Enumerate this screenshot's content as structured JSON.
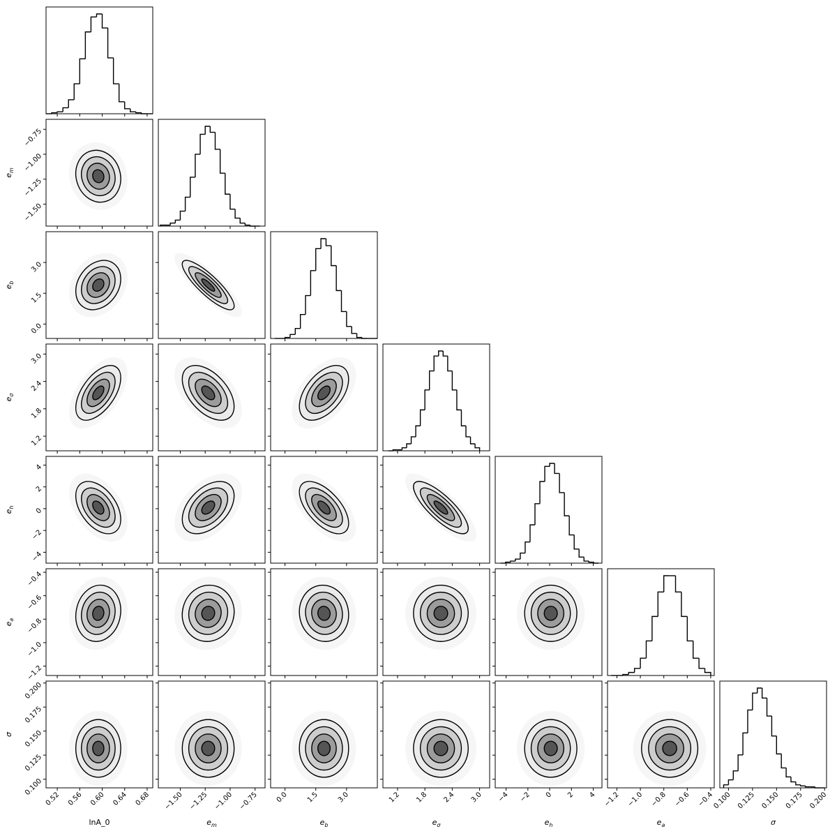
{
  "chart_data": {
    "type": "corner",
    "parameters": [
      {
        "label": "lnA_0",
        "xlim": [
          0.5,
          0.69
        ],
        "xticks": [
          0.52,
          0.56,
          {
            "value": 0.6,
            "label": "0.60"
          },
          0.64,
          0.68
        ],
        "bins": [
          0.5,
          0.51,
          0.52,
          0.53,
          0.54,
          0.55,
          0.56,
          0.57,
          0.58,
          0.59,
          0.6,
          0.61,
          0.62,
          0.63,
          0.64,
          0.65,
          0.66,
          0.67,
          0.68,
          0.69
        ],
        "counts": [
          0,
          1,
          2,
          6,
          14,
          30,
          55,
          82,
          97,
          100,
          86,
          56,
          30,
          12,
          5,
          2,
          1,
          0,
          0
        ],
        "mean": 0.593,
        "std": 0.02
      },
      {
        "label": "e",
        "label_sub": "m",
        "xlim": [
          -1.72,
          -0.65
        ],
        "xticks": [
          {
            "value": -1.5,
            "label": "−1.50"
          },
          {
            "value": -1.25,
            "label": "−1.25"
          },
          {
            "value": -1,
            "label": "−1.00"
          },
          {
            "value": -0.75,
            "label": "−0.75"
          }
        ],
        "bins": [
          -1.7,
          -1.65,
          -1.6,
          -1.55,
          -1.5,
          -1.45,
          -1.4,
          -1.35,
          -1.3,
          -1.25,
          -1.2,
          -1.15,
          -1.1,
          -1.05,
          -1,
          -0.95,
          -0.9,
          -0.85,
          -0.8,
          -0.75,
          -0.7
        ],
        "counts": [
          1,
          1,
          3,
          6,
          15,
          29,
          49,
          72,
          92,
          100,
          94,
          77,
          53,
          32,
          17,
          8,
          3,
          1,
          0,
          0
        ],
        "mean": -1.22,
        "std": 0.13
      },
      {
        "label": "e",
        "label_sub": "b",
        "xlim": [
          -0.7,
          4.5
        ],
        "xticks": [
          {
            "value": 0,
            "label": "0.0"
          },
          1.5,
          {
            "value": 3,
            "label": "3.0"
          }
        ],
        "bins": [
          -0.5,
          -0.25,
          0,
          0.25,
          0.5,
          0.75,
          1,
          1.25,
          1.5,
          1.75,
          2,
          2.25,
          2.5,
          2.75,
          3,
          3.25,
          3.5,
          3.75,
          4,
          4.25,
          4.5
        ],
        "counts": [
          0,
          0,
          1,
          4,
          10,
          24,
          43,
          68,
          90,
          100,
          93,
          73,
          48,
          27,
          12,
          5,
          1,
          0,
          0,
          0
        ],
        "mean": 1.9,
        "std": 0.6
      },
      {
        "label": "e",
        "label_sub": "σ",
        "xlim": [
          0.88,
          3.22
        ],
        "xticks": [
          1.2,
          1.8,
          2.4,
          {
            "value": 3,
            "label": "3.0"
          }
        ],
        "bins": [
          1,
          1.1,
          1.2,
          1.3,
          1.4,
          1.5,
          1.6,
          1.7,
          1.8,
          1.9,
          2,
          2.1,
          2.2,
          2.3,
          2.4,
          2.5,
          2.6,
          2.7,
          2.8,
          2.9,
          3
        ],
        "counts": [
          0,
          1,
          1,
          3,
          7,
          14,
          25,
          41,
          61,
          80,
          95,
          100,
          95,
          80,
          61,
          41,
          25,
          14,
          7,
          3
        ],
        "mean": 2.15,
        "std": 0.3
      },
      {
        "label": "e",
        "label_sub": "h",
        "xlim": [
          -5,
          4.8
        ],
        "xticks": [
          {
            "value": -4,
            "label": "−4"
          },
          {
            "value": -2,
            "label": "−2"
          },
          0,
          2,
          4
        ],
        "bins": [
          -4.5,
          -4.05,
          -3.6,
          -3.15,
          -2.7,
          -2.25,
          -1.8,
          -1.35,
          -0.9,
          -0.45,
          0,
          0.45,
          0.9,
          1.35,
          1.8,
          2.25,
          2.7,
          3.15,
          3.6,
          4.05,
          4.5
        ],
        "counts": [
          0,
          1,
          2,
          4,
          10,
          21,
          38,
          59,
          81,
          96,
          99,
          89,
          70,
          47,
          28,
          14,
          6,
          2,
          1,
          0
        ],
        "mean": 0.1,
        "std": 1.2
      },
      {
        "label": "e",
        "label_sub": "a",
        "xlim": [
          -1.28,
          -0.37
        ],
        "xticks": [
          {
            "value": -1.2,
            "label": "−1.2"
          },
          {
            "value": -1,
            "label": "−1.0"
          },
          {
            "value": -0.8,
            "label": "−0.8"
          },
          {
            "value": -0.6,
            "label": "−0.6"
          },
          {
            "value": -0.4,
            "label": "−0.4"
          }
        ],
        "bins": [
          -1.25,
          -1.2,
          -1.15,
          -1.1,
          -1.05,
          -1,
          -0.95,
          -0.9,
          -0.85,
          -0.8,
          -0.75,
          -0.7,
          -0.65,
          -0.6,
          -0.55,
          -0.5,
          -0.45,
          -0.4
        ],
        "counts": [
          0,
          0,
          1,
          3,
          7,
          17,
          34,
          58,
          82,
          98,
          98,
          82,
          58,
          34,
          17,
          7,
          3
        ],
        "mean": -0.75,
        "std": 0.12
      },
      {
        "label": "σ",
        "xlim": [
          0.091,
          0.202
        ],
        "xticks": [
          {
            "value": 0.1,
            "label": "0.100"
          },
          0.125,
          {
            "value": 0.15,
            "label": "0.150"
          },
          0.175,
          {
            "value": 0.2,
            "label": "0.200"
          }
        ],
        "bins": [
          0.095,
          0.1,
          0.105,
          0.11,
          0.115,
          0.12,
          0.125,
          0.13,
          0.135,
          0.14,
          0.145,
          0.15,
          0.155,
          0.16,
          0.165,
          0.17,
          0.175,
          0.18,
          0.185,
          0.19,
          0.195,
          0.2
        ],
        "counts": [
          3,
          8,
          17,
          33,
          55,
          78,
          95,
          100,
          90,
          72,
          52,
          34,
          20,
          11,
          6,
          3,
          2,
          1,
          1,
          0,
          0
        ],
        "mean": 0.132,
        "std": 0.015
      }
    ],
    "correlations": [
      [],
      [
        -0.1
      ],
      [
        0.25,
        -0.85
      ],
      [
        0.55,
        -0.5,
        0.5
      ],
      [
        -0.45,
        0.45,
        -0.6,
        -0.8
      ],
      [
        0.1,
        0.05,
        -0.05,
        0,
        0
      ],
      [
        0,
        0,
        0,
        0,
        0,
        0
      ]
    ]
  }
}
